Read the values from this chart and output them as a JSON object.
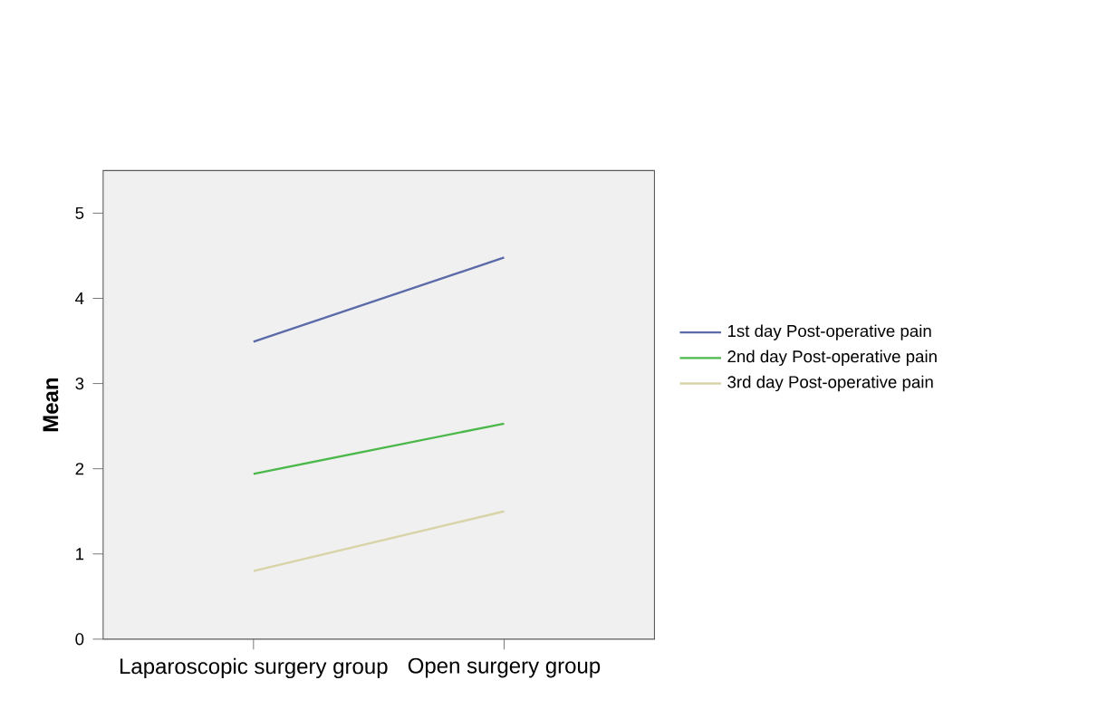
{
  "chart_data": {
    "type": "line",
    "ylabel": "Mean",
    "categories": [
      "Laparoscopic surgery group",
      "Open surgery group"
    ],
    "series": [
      {
        "name": "1st day Post-operative pain",
        "color": "#5b6aa8",
        "values": [
          3.49,
          4.48
        ]
      },
      {
        "name": "2nd day Post-operative pain",
        "color": "#4cb84c",
        "values": [
          1.94,
          2.53
        ]
      },
      {
        "name": "3rd day Post-operative pain",
        "color": "#d8d4a8",
        "values": [
          0.8,
          1.5
        ]
      }
    ],
    "ylim": [
      0,
      5.5
    ],
    "yticks": [
      0,
      1,
      2,
      3,
      4,
      5
    ],
    "legend": "right",
    "grid": false
  }
}
